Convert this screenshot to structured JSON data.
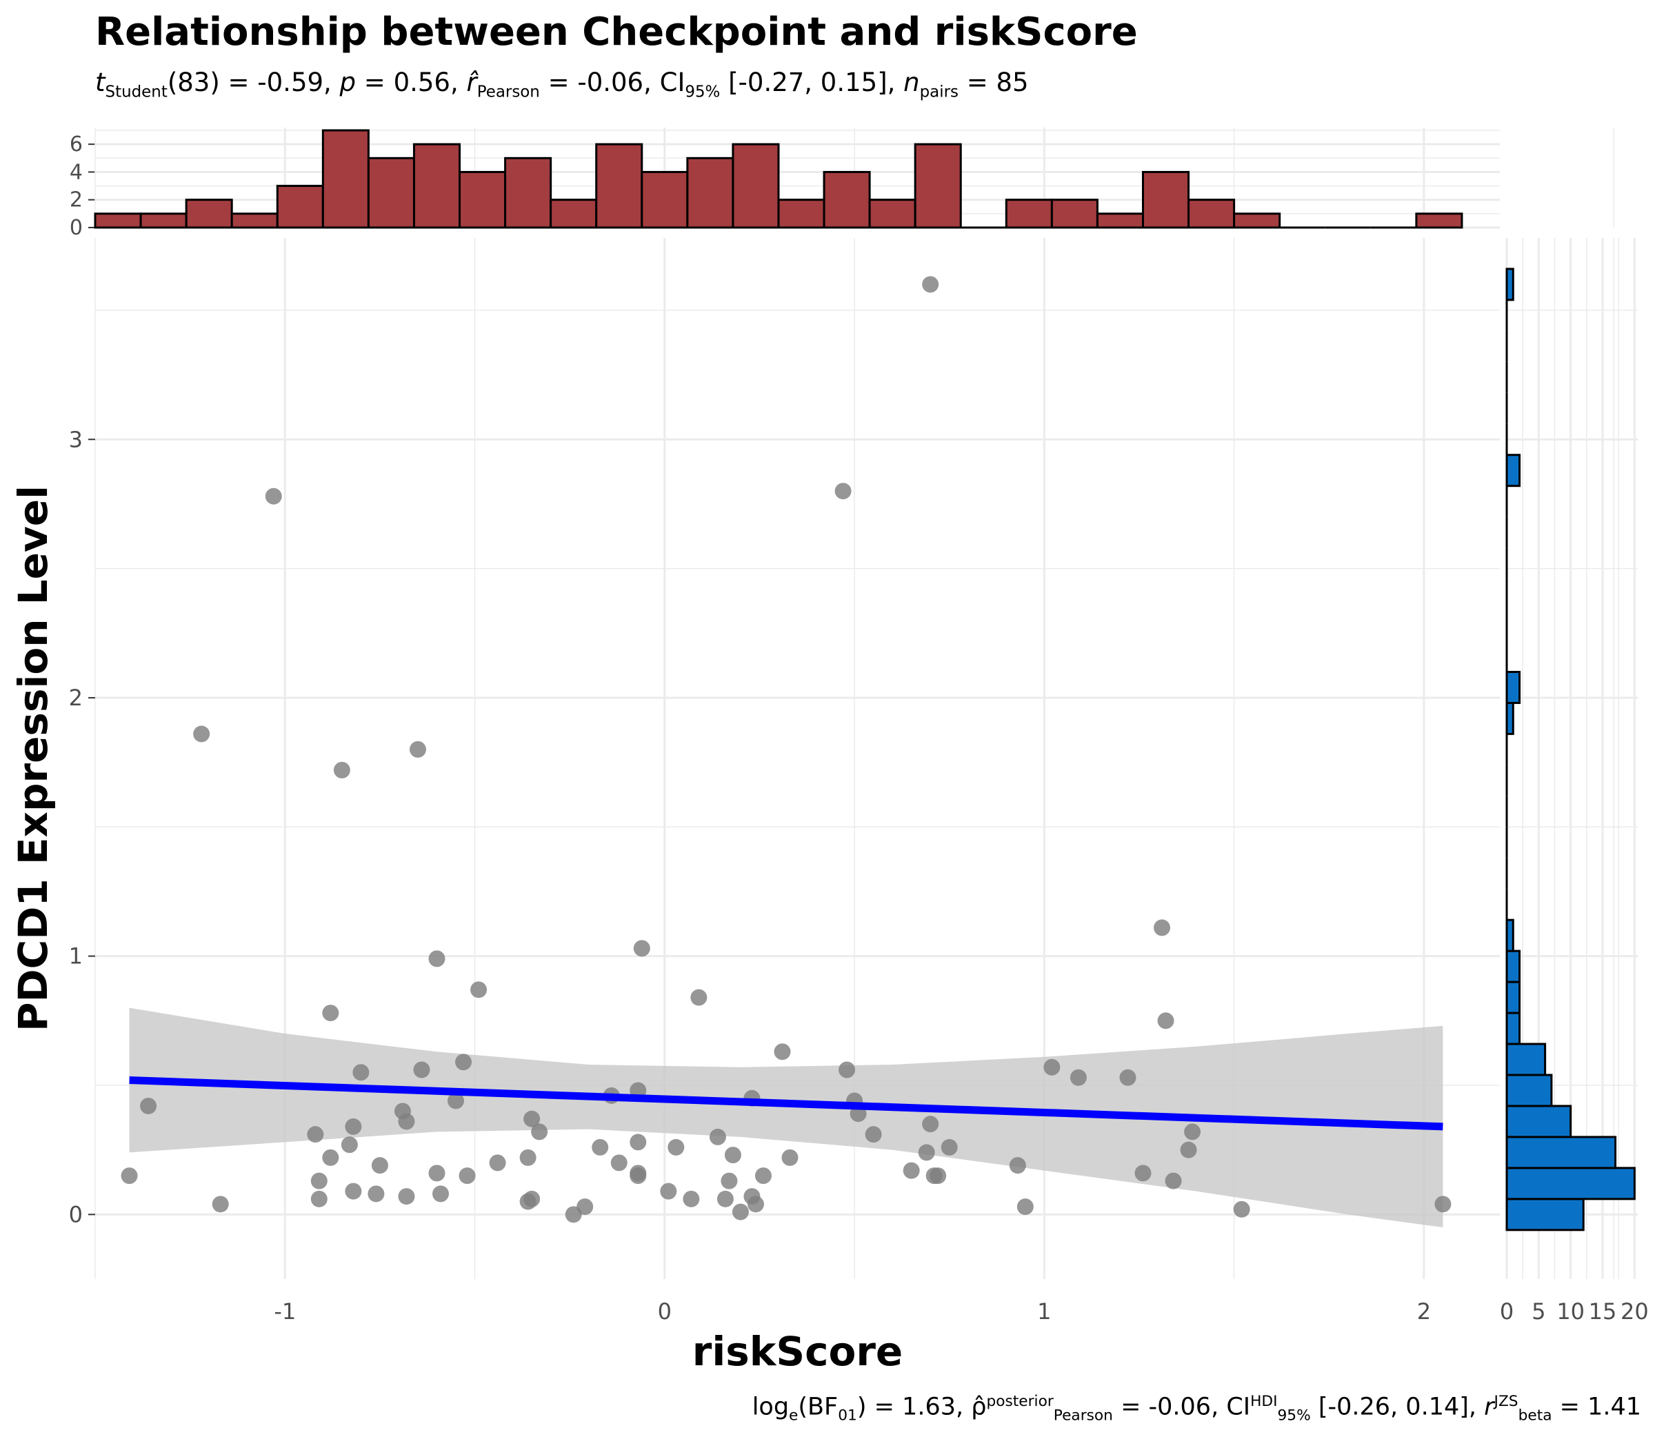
{
  "chart_data": {
    "type": "scatter",
    "title": "Relationship between Checkpoint and riskScore",
    "subtitle": {
      "t_symbol": "t",
      "t_sub": "Student",
      "t_value": "(83) = -0.59, ",
      "p_symbol": "p",
      "p_value": " = 0.56, ",
      "r_symbol": "r̂",
      "r_sub": "Pearson",
      "r_value": " = -0.06, CI",
      "ci_sub": "95%",
      "ci_value": " [-0.27, 0.15], ",
      "n_symbol": "n",
      "n_sub": "pairs",
      "n_value": " = 85"
    },
    "caption": {
      "log_text": "log",
      "log_sub": "e",
      "bf_open": "(BF",
      "bf_sub": "01",
      "bf_value": ") = 1.63, ",
      "rho_symbol": "ρ̂",
      "rho_sup": "posterior",
      "rho_sub": "Pearson",
      "rho_value": " = -0.06, CI",
      "hdi_sup": "HDI",
      "hdi_sub": "95%",
      "hdi_value": " [-0.26, 0.14], ",
      "rb_symbol": "r",
      "rb_sup": "JZS",
      "rb_sub": "beta",
      "rb_value": " = 1.41"
    },
    "xlabel": "riskScore",
    "ylabel": "PDCD1 Expression Level",
    "xlim": [
      -1.5,
      2.2
    ],
    "ylim": [
      -0.25,
      3.78
    ],
    "xticks": [
      -1,
      0,
      1,
      2
    ],
    "yticks": [
      0,
      1,
      2,
      3
    ],
    "grid": true,
    "point_color": "#7f7f7f",
    "line_color": "#0000ff",
    "ribbon_color": "#c8c8c8",
    "points": [
      {
        "x": -1.41,
        "y": 0.15
      },
      {
        "x": -1.36,
        "y": 0.42
      },
      {
        "x": -1.22,
        "y": 1.86
      },
      {
        "x": -1.17,
        "y": 0.04
      },
      {
        "x": -1.03,
        "y": 2.78
      },
      {
        "x": -0.92,
        "y": 0.31
      },
      {
        "x": -0.91,
        "y": 0.13
      },
      {
        "x": -0.91,
        "y": 0.06
      },
      {
        "x": -0.88,
        "y": 0.78
      },
      {
        "x": -0.88,
        "y": 0.22
      },
      {
        "x": -0.85,
        "y": 1.72
      },
      {
        "x": -0.83,
        "y": 0.27
      },
      {
        "x": -0.82,
        "y": 0.34
      },
      {
        "x": -0.82,
        "y": 0.09
      },
      {
        "x": -0.8,
        "y": 0.55
      },
      {
        "x": -0.76,
        "y": 0.08
      },
      {
        "x": -0.75,
        "y": 0.19
      },
      {
        "x": -0.69,
        "y": 0.4
      },
      {
        "x": -0.68,
        "y": 0.36
      },
      {
        "x": -0.68,
        "y": 0.07
      },
      {
        "x": -0.65,
        "y": 1.8
      },
      {
        "x": -0.64,
        "y": 0.56
      },
      {
        "x": -0.6,
        "y": 0.99
      },
      {
        "x": -0.6,
        "y": 0.16
      },
      {
        "x": -0.59,
        "y": 0.08
      },
      {
        "x": -0.55,
        "y": 0.44
      },
      {
        "x": -0.53,
        "y": 0.59
      },
      {
        "x": -0.52,
        "y": 0.15
      },
      {
        "x": -0.49,
        "y": 0.87
      },
      {
        "x": -0.44,
        "y": 0.2
      },
      {
        "x": -0.36,
        "y": 0.05
      },
      {
        "x": -0.36,
        "y": 0.22
      },
      {
        "x": -0.35,
        "y": 0.37
      },
      {
        "x": -0.35,
        "y": 0.06
      },
      {
        "x": -0.33,
        "y": 0.32
      },
      {
        "x": -0.24,
        "y": 0.0
      },
      {
        "x": -0.21,
        "y": 0.03
      },
      {
        "x": -0.17,
        "y": 0.26
      },
      {
        "x": -0.14,
        "y": 0.46
      },
      {
        "x": -0.12,
        "y": 0.2
      },
      {
        "x": -0.07,
        "y": 0.48
      },
      {
        "x": -0.07,
        "y": 0.28
      },
      {
        "x": -0.07,
        "y": 0.15
      },
      {
        "x": -0.07,
        "y": 0.16
      },
      {
        "x": -0.06,
        "y": 1.03
      },
      {
        "x": 0.01,
        "y": 0.09
      },
      {
        "x": 0.03,
        "y": 0.26
      },
      {
        "x": 0.07,
        "y": 0.06
      },
      {
        "x": 0.09,
        "y": 0.84
      },
      {
        "x": 0.14,
        "y": 0.3
      },
      {
        "x": 0.16,
        "y": 0.06
      },
      {
        "x": 0.17,
        "y": 0.13
      },
      {
        "x": 0.18,
        "y": 0.23
      },
      {
        "x": 0.2,
        "y": 0.01
      },
      {
        "x": 0.23,
        "y": 0.45
      },
      {
        "x": 0.23,
        "y": 0.07
      },
      {
        "x": 0.24,
        "y": 0.04
      },
      {
        "x": 0.26,
        "y": 0.15
      },
      {
        "x": 0.31,
        "y": 0.63
      },
      {
        "x": 0.33,
        "y": 0.22
      },
      {
        "x": 0.47,
        "y": 2.8
      },
      {
        "x": 0.48,
        "y": 0.56
      },
      {
        "x": 0.5,
        "y": 0.44
      },
      {
        "x": 0.51,
        "y": 0.39
      },
      {
        "x": 0.55,
        "y": 0.31
      },
      {
        "x": 0.65,
        "y": 0.17
      },
      {
        "x": 0.69,
        "y": 0.24
      },
      {
        "x": 0.7,
        "y": 3.6
      },
      {
        "x": 0.7,
        "y": 0.35
      },
      {
        "x": 0.71,
        "y": 0.15
      },
      {
        "x": 0.72,
        "y": 0.15
      },
      {
        "x": 0.75,
        "y": 0.26
      },
      {
        "x": 0.93,
        "y": 0.19
      },
      {
        "x": 0.95,
        "y": 0.03
      },
      {
        "x": 1.02,
        "y": 0.57
      },
      {
        "x": 1.09,
        "y": 0.53
      },
      {
        "x": 1.22,
        "y": 0.53
      },
      {
        "x": 1.26,
        "y": 0.16
      },
      {
        "x": 1.31,
        "y": 1.11
      },
      {
        "x": 1.32,
        "y": 0.75
      },
      {
        "x": 1.34,
        "y": 0.13
      },
      {
        "x": 1.38,
        "y": 0.25
      },
      {
        "x": 1.39,
        "y": 0.32
      },
      {
        "x": 1.52,
        "y": 0.02
      },
      {
        "x": 2.05,
        "y": 0.04
      }
    ],
    "regression": {
      "x": [
        -1.41,
        2.05
      ],
      "y": [
        0.52,
        0.34
      ]
    },
    "ribbon": {
      "x": [
        -1.41,
        -1.0,
        -0.6,
        -0.2,
        0.2,
        0.6,
        1.0,
        1.4,
        1.8,
        2.05
      ],
      "upper": [
        0.8,
        0.7,
        0.63,
        0.58,
        0.57,
        0.58,
        0.61,
        0.65,
        0.7,
        0.73
      ],
      "lower": [
        0.24,
        0.28,
        0.32,
        0.33,
        0.3,
        0.25,
        0.17,
        0.09,
        0.0,
        -0.05
      ]
    },
    "top_histogram": {
      "fill": "#a33d40",
      "bin_edges": [
        -1.5,
        -1.38,
        -1.26,
        -1.14,
        -1.02,
        -0.9,
        -0.78,
        -0.66,
        -0.54,
        -0.42,
        -0.3,
        -0.18,
        -0.06,
        0.06,
        0.18,
        0.3,
        0.42,
        0.54,
        0.66,
        0.78,
        0.9,
        1.02,
        1.14,
        1.26,
        1.38,
        1.5,
        1.62,
        1.74,
        1.86,
        1.98,
        2.1
      ],
      "counts": [
        1,
        1,
        2,
        1,
        3,
        7,
        5,
        6,
        4,
        5,
        2,
        6,
        4,
        5,
        6,
        2,
        4,
        2,
        6,
        0,
        2,
        2,
        1,
        4,
        2,
        1,
        0,
        0,
        0,
        1
      ],
      "yticks": [
        0,
        2,
        4,
        6
      ]
    },
    "right_histogram": {
      "fill": "#0a72c6",
      "bin_edges": [
        -0.06,
        0.06,
        0.18,
        0.3,
        0.42,
        0.54,
        0.66,
        0.78,
        0.9,
        1.02,
        1.14,
        1.26,
        1.38,
        1.5,
        1.62,
        1.74,
        1.86,
        1.98,
        2.1,
        2.22,
        2.34,
        2.46,
        2.58,
        2.7,
        2.82,
        2.94,
        3.06,
        3.18,
        3.3,
        3.42,
        3.54,
        3.66
      ],
      "counts": [
        12,
        20,
        17,
        10,
        7,
        6,
        2,
        2,
        2,
        1,
        0,
        0,
        0,
        0,
        0,
        0,
        1,
        2,
        0,
        0,
        0,
        0,
        0,
        0,
        2,
        0,
        0,
        0,
        0,
        0,
        1
      ],
      "xticks": [
        0,
        5,
        10,
        15,
        20
      ]
    }
  }
}
